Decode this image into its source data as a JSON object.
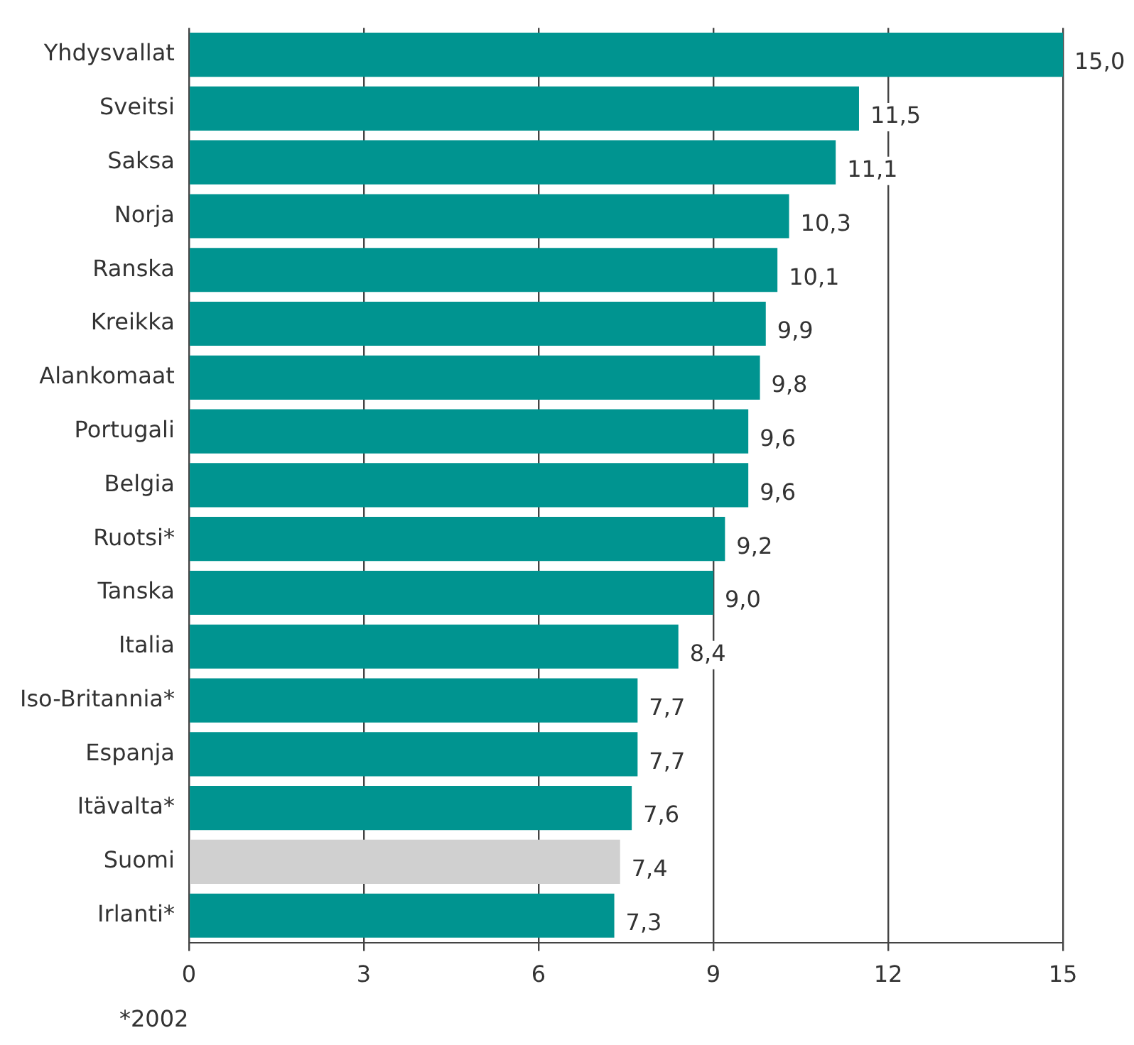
{
  "chart_data": {
    "type": "bar",
    "orientation": "horizontal",
    "categories": [
      "Yhdysvallat",
      "Sveitsi",
      "Saksa",
      "Norja",
      "Ranska",
      "Kreikka",
      "Alankomaat",
      "Portugali",
      "Belgia",
      "Ruotsi*",
      "Tanska",
      "Italia",
      "Iso-Britannia*",
      "Espanja",
      "Itävalta*",
      "Suomi",
      "Irlanti*"
    ],
    "values": [
      15.0,
      11.5,
      11.1,
      10.3,
      10.1,
      9.9,
      9.8,
      9.6,
      9.6,
      9.2,
      9.0,
      8.4,
      7.7,
      7.7,
      7.6,
      7.4,
      7.3
    ],
    "value_labels": [
      "15,0",
      "11,5",
      "11,1",
      "10,3",
      "10,1",
      "9,9",
      "9,8",
      "9,6",
      "9,6",
      "9,2",
      "9,0",
      "8,4",
      "7,7",
      "7,7",
      "7,6",
      "7,4",
      "7,3"
    ],
    "colors": [
      "#009490",
      "#009490",
      "#009490",
      "#009490",
      "#009490",
      "#009490",
      "#009490",
      "#009490",
      "#009490",
      "#009490",
      "#009490",
      "#009490",
      "#009490",
      "#009490",
      "#009490",
      "#d0d0d0",
      "#009490"
    ],
    "xlim": [
      0,
      15
    ],
    "xticks": [
      0,
      3,
      6,
      9,
      12,
      15
    ],
    "grid": "x",
    "annotations": [
      "*2002"
    ]
  }
}
